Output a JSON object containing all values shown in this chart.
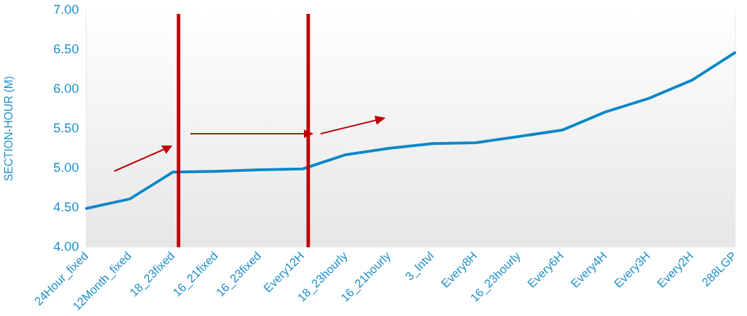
{
  "chart_data": {
    "type": "line",
    "ylabel": "SECTION-HOUR (M)",
    "categories": [
      "24Hour_fixed",
      "12Month_fixed",
      "18_23fixed",
      "16_21fixed",
      "16_23fixed",
      "Every12H",
      "18_23hourly",
      "16_21hourly",
      "3_Intvl",
      "Every8H",
      "16_23hourly",
      "Every6H",
      "Every4H",
      "Every3H",
      "Every2H",
      "288LGP"
    ],
    "series": [
      {
        "color": "#0a88c8",
        "values": [
          4.49,
          4.61,
          4.95,
          4.96,
          4.98,
          4.99,
          5.17,
          5.25,
          5.31,
          5.32,
          5.4,
          5.48,
          5.71,
          5.88,
          6.11,
          6.46
        ]
      }
    ],
    "ylim": [
      4,
      7
    ],
    "yticks": [
      {
        "value": 4,
        "label": "4.00"
      },
      {
        "value": 4.5,
        "label": "4.50"
      },
      {
        "value": 5,
        "label": "5.00"
      },
      {
        "value": 5.5,
        "label": "5.50"
      },
      {
        "value": 6,
        "label": "6.00"
      },
      {
        "value": 6.5,
        "label": "6.50"
      },
      {
        "value": 7,
        "label": "7.00"
      }
    ],
    "ref_lines": [
      {
        "axis": "x",
        "value": "18_23fixed",
        "color": "#c00000"
      },
      {
        "axis": "x",
        "value": "Every12H",
        "color": "#c00000"
      }
    ],
    "grid": "x",
    "legend": false,
    "marker": "none",
    "line_style": "solid"
  }
}
